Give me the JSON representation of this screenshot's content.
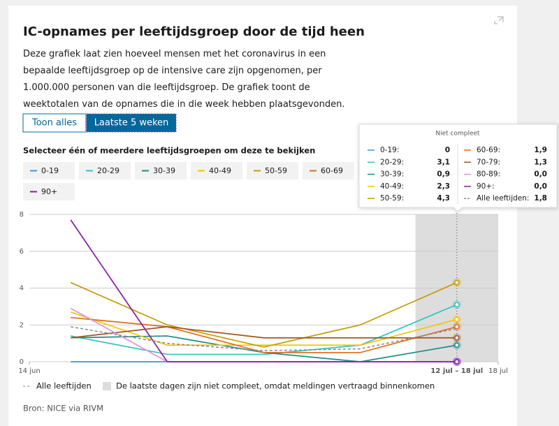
{
  "header": {
    "title": "IC-opnames per leeftijdsgroep door de tijd heen",
    "description": "Deze grafiek laat zien hoeveel mensen met het coronavirus in een bepaalde leeftijdsgroep op de intensive care zijn opgenomen, per 1.000.000 personen van die leeftijdsgroep. De grafiek toont de weektotalen van de opnames die in die week hebben plaatsgevonden."
  },
  "buttons": [
    "Toon alles",
    "Laatste 5 weken"
  ],
  "select_label": "Selecteer één of meerdere leeftijdsgroepen om deze te bekijken",
  "chart_data": {
    "type": "line",
    "x": [
      17,
      24,
      31,
      38,
      45
    ],
    "xlim": [
      14,
      48
    ],
    "xticks": [
      {
        "value": 14,
        "label": "14 jun"
      },
      {
        "value": 45,
        "label": "12 jul – 18 jul"
      },
      {
        "value": 48,
        "label": "18 jul"
      }
    ],
    "ylim": [
      0,
      8
    ],
    "yticks": [
      0,
      2,
      4,
      6,
      8
    ],
    "grid": true,
    "incomplete_xlim": [
      42,
      48
    ],
    "series": [
      {
        "name": "0-19",
        "color": "#3a95d8",
        "values": [
          0,
          0,
          0,
          0,
          0
        ]
      },
      {
        "name": "20-29",
        "color": "#2ec4bf",
        "values": [
          1.4,
          0.4,
          0.4,
          0.9,
          3.1
        ]
      },
      {
        "name": "30-39",
        "color": "#1a8c8c",
        "values": [
          1.3,
          1.4,
          0.5,
          0,
          0.9
        ]
      },
      {
        "name": "40-49",
        "color": "#f5c400",
        "values": [
          2.7,
          0.9,
          0.9,
          0.9,
          2.3
        ]
      },
      {
        "name": "50-59",
        "color": "#c99a00",
        "values": [
          4.3,
          2.0,
          0.8,
          2.0,
          4.3
        ]
      },
      {
        "name": "60-69",
        "color": "#e06c1a",
        "values": [
          2.4,
          1.9,
          0.5,
          0.5,
          1.9
        ]
      },
      {
        "name": "70-79",
        "color": "#a0541a",
        "values": [
          1.3,
          1.9,
          1.3,
          1.3,
          1.3
        ]
      },
      {
        "name": "80-89",
        "color": "#e58ee0",
        "values": [
          2.9,
          0,
          0,
          0,
          0
        ]
      },
      {
        "name": "90+",
        "color": "#8a1aa8",
        "values": [
          7.7,
          0,
          0,
          0,
          0
        ]
      },
      {
        "name": "Alle leeftijden",
        "color": "#888888",
        "dashed": true,
        "values": [
          1.9,
          1.0,
          0.6,
          0.7,
          1.8
        ]
      }
    ]
  },
  "tooltip": {
    "title": "Niet compleet",
    "rows": [
      {
        "label": "0-19:",
        "value": "0"
      },
      {
        "label": "20-29:",
        "value": "3,1"
      },
      {
        "label": "30-39:",
        "value": "0,9"
      },
      {
        "label": "40-49:",
        "value": "2,3"
      },
      {
        "label": "50-59:",
        "value": "4,3"
      },
      {
        "label": "60-69:",
        "value": "1,9"
      },
      {
        "label": "70-79:",
        "value": "1,3"
      },
      {
        "label": "80-89:",
        "value": "0,0"
      },
      {
        "label": "90+:",
        "value": "0,0"
      },
      {
        "label": "Alle leeftijden:",
        "value": "1,8"
      }
    ]
  },
  "note": "De laatste dagen zijn niet compleet, omdat meldingen vertraagd binnenkomen",
  "source": "Bron: NICE via RIVM"
}
